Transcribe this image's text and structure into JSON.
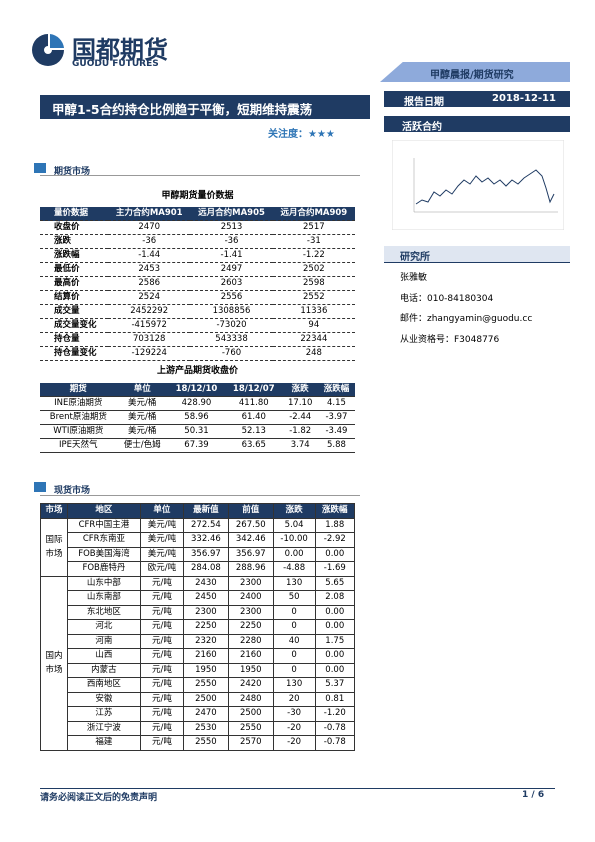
{
  "header": {
    "logo_cn": "国都期货",
    "logo_en": "GUODU FUTURES",
    "banner": "甲醇晨报/期货研究",
    "title": "甲醇1-5合约持仓比例趋于平衡，短期维持震荡",
    "attention": "关注度：★★★",
    "date_label": "报告日期",
    "date": "2018-12-11"
  },
  "sidebar": {
    "active_title": "活跃合约",
    "institute_title": "研究所",
    "author": "张雅敏",
    "phone": "电话：010-84180304",
    "email": "邮件：zhangyamin@guodu.cc",
    "license": "从业资格号：F3048776"
  },
  "futures": {
    "section": "期货市场",
    "table_title": "甲醇期货量价数据",
    "header": [
      "量价数据",
      "主力合约MA901",
      "远月合约MA905",
      "远月合约MA909"
    ],
    "rows": [
      [
        "收盘价",
        "2470",
        "2513",
        "2517"
      ],
      [
        "涨跌",
        "-36",
        "-36",
        "-31"
      ],
      [
        "涨跌幅",
        "-1.44",
        "-1.41",
        "-1.22"
      ],
      [
        "最低价",
        "2453",
        "2497",
        "2502"
      ],
      [
        "最高价",
        "2586",
        "2603",
        "2598"
      ],
      [
        "结算价",
        "2524",
        "2556",
        "2552"
      ],
      [
        "成交量",
        "2452292",
        "1308856",
        "11336"
      ],
      [
        "成交量变化",
        "-415972",
        "-73020",
        "94"
      ],
      [
        "持仓量",
        "703128",
        "543338",
        "22344"
      ],
      [
        "持仓量变化",
        "-129224",
        "-760",
        "248"
      ]
    ]
  },
  "upstream": {
    "table_title": "上游产品期货收盘价",
    "header": [
      "期货",
      "单位",
      "18/12/10",
      "18/12/07",
      "涨跌",
      "涨跌幅"
    ],
    "rows": [
      [
        "INE原油期货",
        "美元/桶",
        "428.90",
        "411.80",
        "17.10",
        "4.15"
      ],
      [
        "Brent原油期货",
        "美元/桶",
        "58.96",
        "61.40",
        "-2.44",
        "-3.97"
      ],
      [
        "WTI原油期货",
        "美元/桶",
        "50.31",
        "52.13",
        "-1.82",
        "-3.49"
      ],
      [
        "IPE天然气",
        "便士/色姆",
        "67.39",
        "63.65",
        "3.74",
        "5.88"
      ]
    ]
  },
  "spot": {
    "section": "现货市场",
    "header": [
      "市场",
      "地区",
      "单位",
      "最新值",
      "前值",
      "涨跌",
      "涨跌幅"
    ],
    "groups": [
      {
        "market": "国际市场",
        "rows": [
          [
            "CFR中国主港",
            "美元/吨",
            "272.54",
            "267.50",
            "5.04",
            "1.88"
          ],
          [
            "CFR东南亚",
            "美元/吨",
            "332.46",
            "342.46",
            "-10.00",
            "-2.92"
          ],
          [
            "FOB美国海湾",
            "美元/吨",
            "356.97",
            "356.97",
            "0.00",
            "0.00"
          ],
          [
            "FOB鹿特丹",
            "欧元/吨",
            "284.08",
            "288.96",
            "-4.88",
            "-1.69"
          ]
        ]
      },
      {
        "market": "国内市场",
        "rows": [
          [
            "山东中部",
            "元/吨",
            "2430",
            "2300",
            "130",
            "5.65"
          ],
          [
            "山东南部",
            "元/吨",
            "2450",
            "2400",
            "50",
            "2.08"
          ],
          [
            "东北地区",
            "元/吨",
            "2300",
            "2300",
            "0",
            "0.00"
          ],
          [
            "河北",
            "元/吨",
            "2250",
            "2250",
            "0",
            "0.00"
          ],
          [
            "河南",
            "元/吨",
            "2320",
            "2280",
            "40",
            "1.75"
          ],
          [
            "山西",
            "元/吨",
            "2160",
            "2160",
            "0",
            "0.00"
          ],
          [
            "内蒙古",
            "元/吨",
            "1950",
            "1950",
            "0",
            "0.00"
          ],
          [
            "西南地区",
            "元/吨",
            "2550",
            "2420",
            "130",
            "5.37"
          ],
          [
            "安徽",
            "元/吨",
            "2500",
            "2480",
            "20",
            "0.81"
          ],
          [
            "江苏",
            "元/吨",
            "2470",
            "2500",
            "-30",
            "-1.20"
          ],
          [
            "浙江宁波",
            "元/吨",
            "2530",
            "2550",
            "-20",
            "-0.78"
          ],
          [
            "福建",
            "元/吨",
            "2550",
            "2570",
            "-20",
            "-0.78"
          ]
        ]
      }
    ]
  },
  "footer": {
    "disclaimer": "请务必阅读正文后的免责声明",
    "page": "1 / 6"
  }
}
